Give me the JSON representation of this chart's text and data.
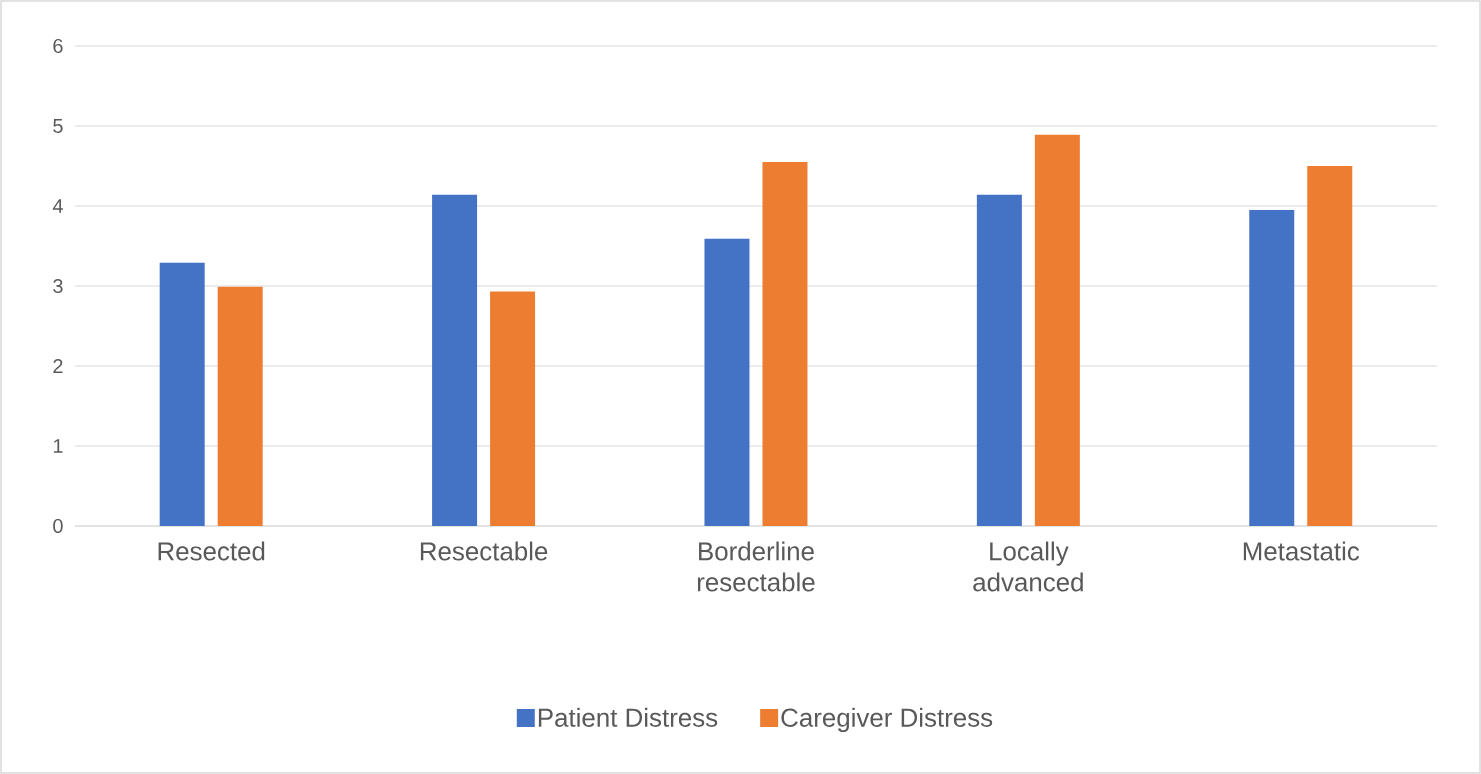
{
  "chart_data": {
    "type": "bar",
    "categories": [
      "Resected",
      "Resectable",
      "Borderline resectable",
      "Locally advanced",
      "Metastatic"
    ],
    "series": [
      {
        "name": "Patient Distress",
        "color": "#4472c4",
        "values": [
          3.29,
          4.14,
          3.59,
          4.14,
          3.95
        ]
      },
      {
        "name": "Caregiver Distress",
        "color": "#ed7d31",
        "values": [
          2.99,
          2.93,
          4.55,
          4.89,
          4.5
        ]
      }
    ],
    "ylim": [
      0,
      6
    ],
    "yticks": [
      0,
      1,
      2,
      3,
      4,
      5,
      6
    ],
    "grid": "y",
    "legend": "bottom"
  }
}
